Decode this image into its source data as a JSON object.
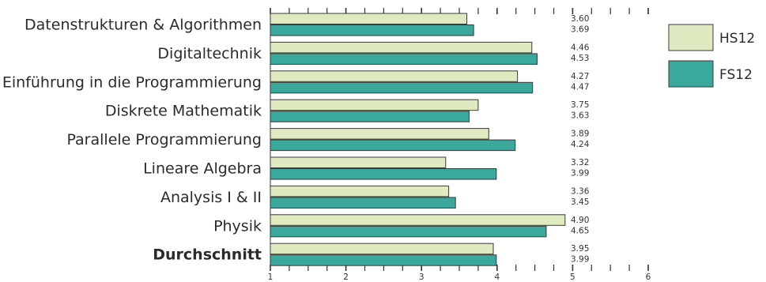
{
  "chart_data": {
    "type": "bar",
    "orientation": "horizontal",
    "categories": [
      "Datenstrukturen & Algorithmen",
      "Digitaltechnik",
      "Einführung in die Programmierung",
      "Diskrete Mathematik",
      "Parallele Programmierung",
      "Lineare Algebra",
      "Analysis I & II",
      "Physik",
      "Durchschnitt"
    ],
    "bold_categories": [
      "Durchschnitt"
    ],
    "series": [
      {
        "name": "HS12",
        "color": "#dfeac0",
        "values": [
          3.6,
          4.46,
          4.27,
          3.75,
          3.89,
          3.32,
          3.36,
          4.9,
          3.95
        ]
      },
      {
        "name": "FS12",
        "color": "#3aa89a",
        "values": [
          3.69,
          4.53,
          4.47,
          3.63,
          4.24,
          3.99,
          3.45,
          4.65,
          3.99
        ]
      }
    ],
    "value_labels": [
      [
        "3.60",
        "3.69"
      ],
      [
        "4.46",
        "4.53"
      ],
      [
        "4.27",
        "4.47"
      ],
      [
        "3.75",
        "3.63"
      ],
      [
        "3.89",
        "4.24"
      ],
      [
        "3.32",
        "3.99"
      ],
      [
        "3.36",
        "3.45"
      ],
      [
        "4.90",
        "4.65"
      ],
      [
        "3.95",
        "3.99"
      ]
    ],
    "xlim": [
      1,
      6
    ],
    "xticks": [
      1,
      2,
      3,
      4,
      5,
      6
    ],
    "title": "",
    "xlabel": "",
    "ylabel": "",
    "legend_position": "right",
    "grid": false
  }
}
